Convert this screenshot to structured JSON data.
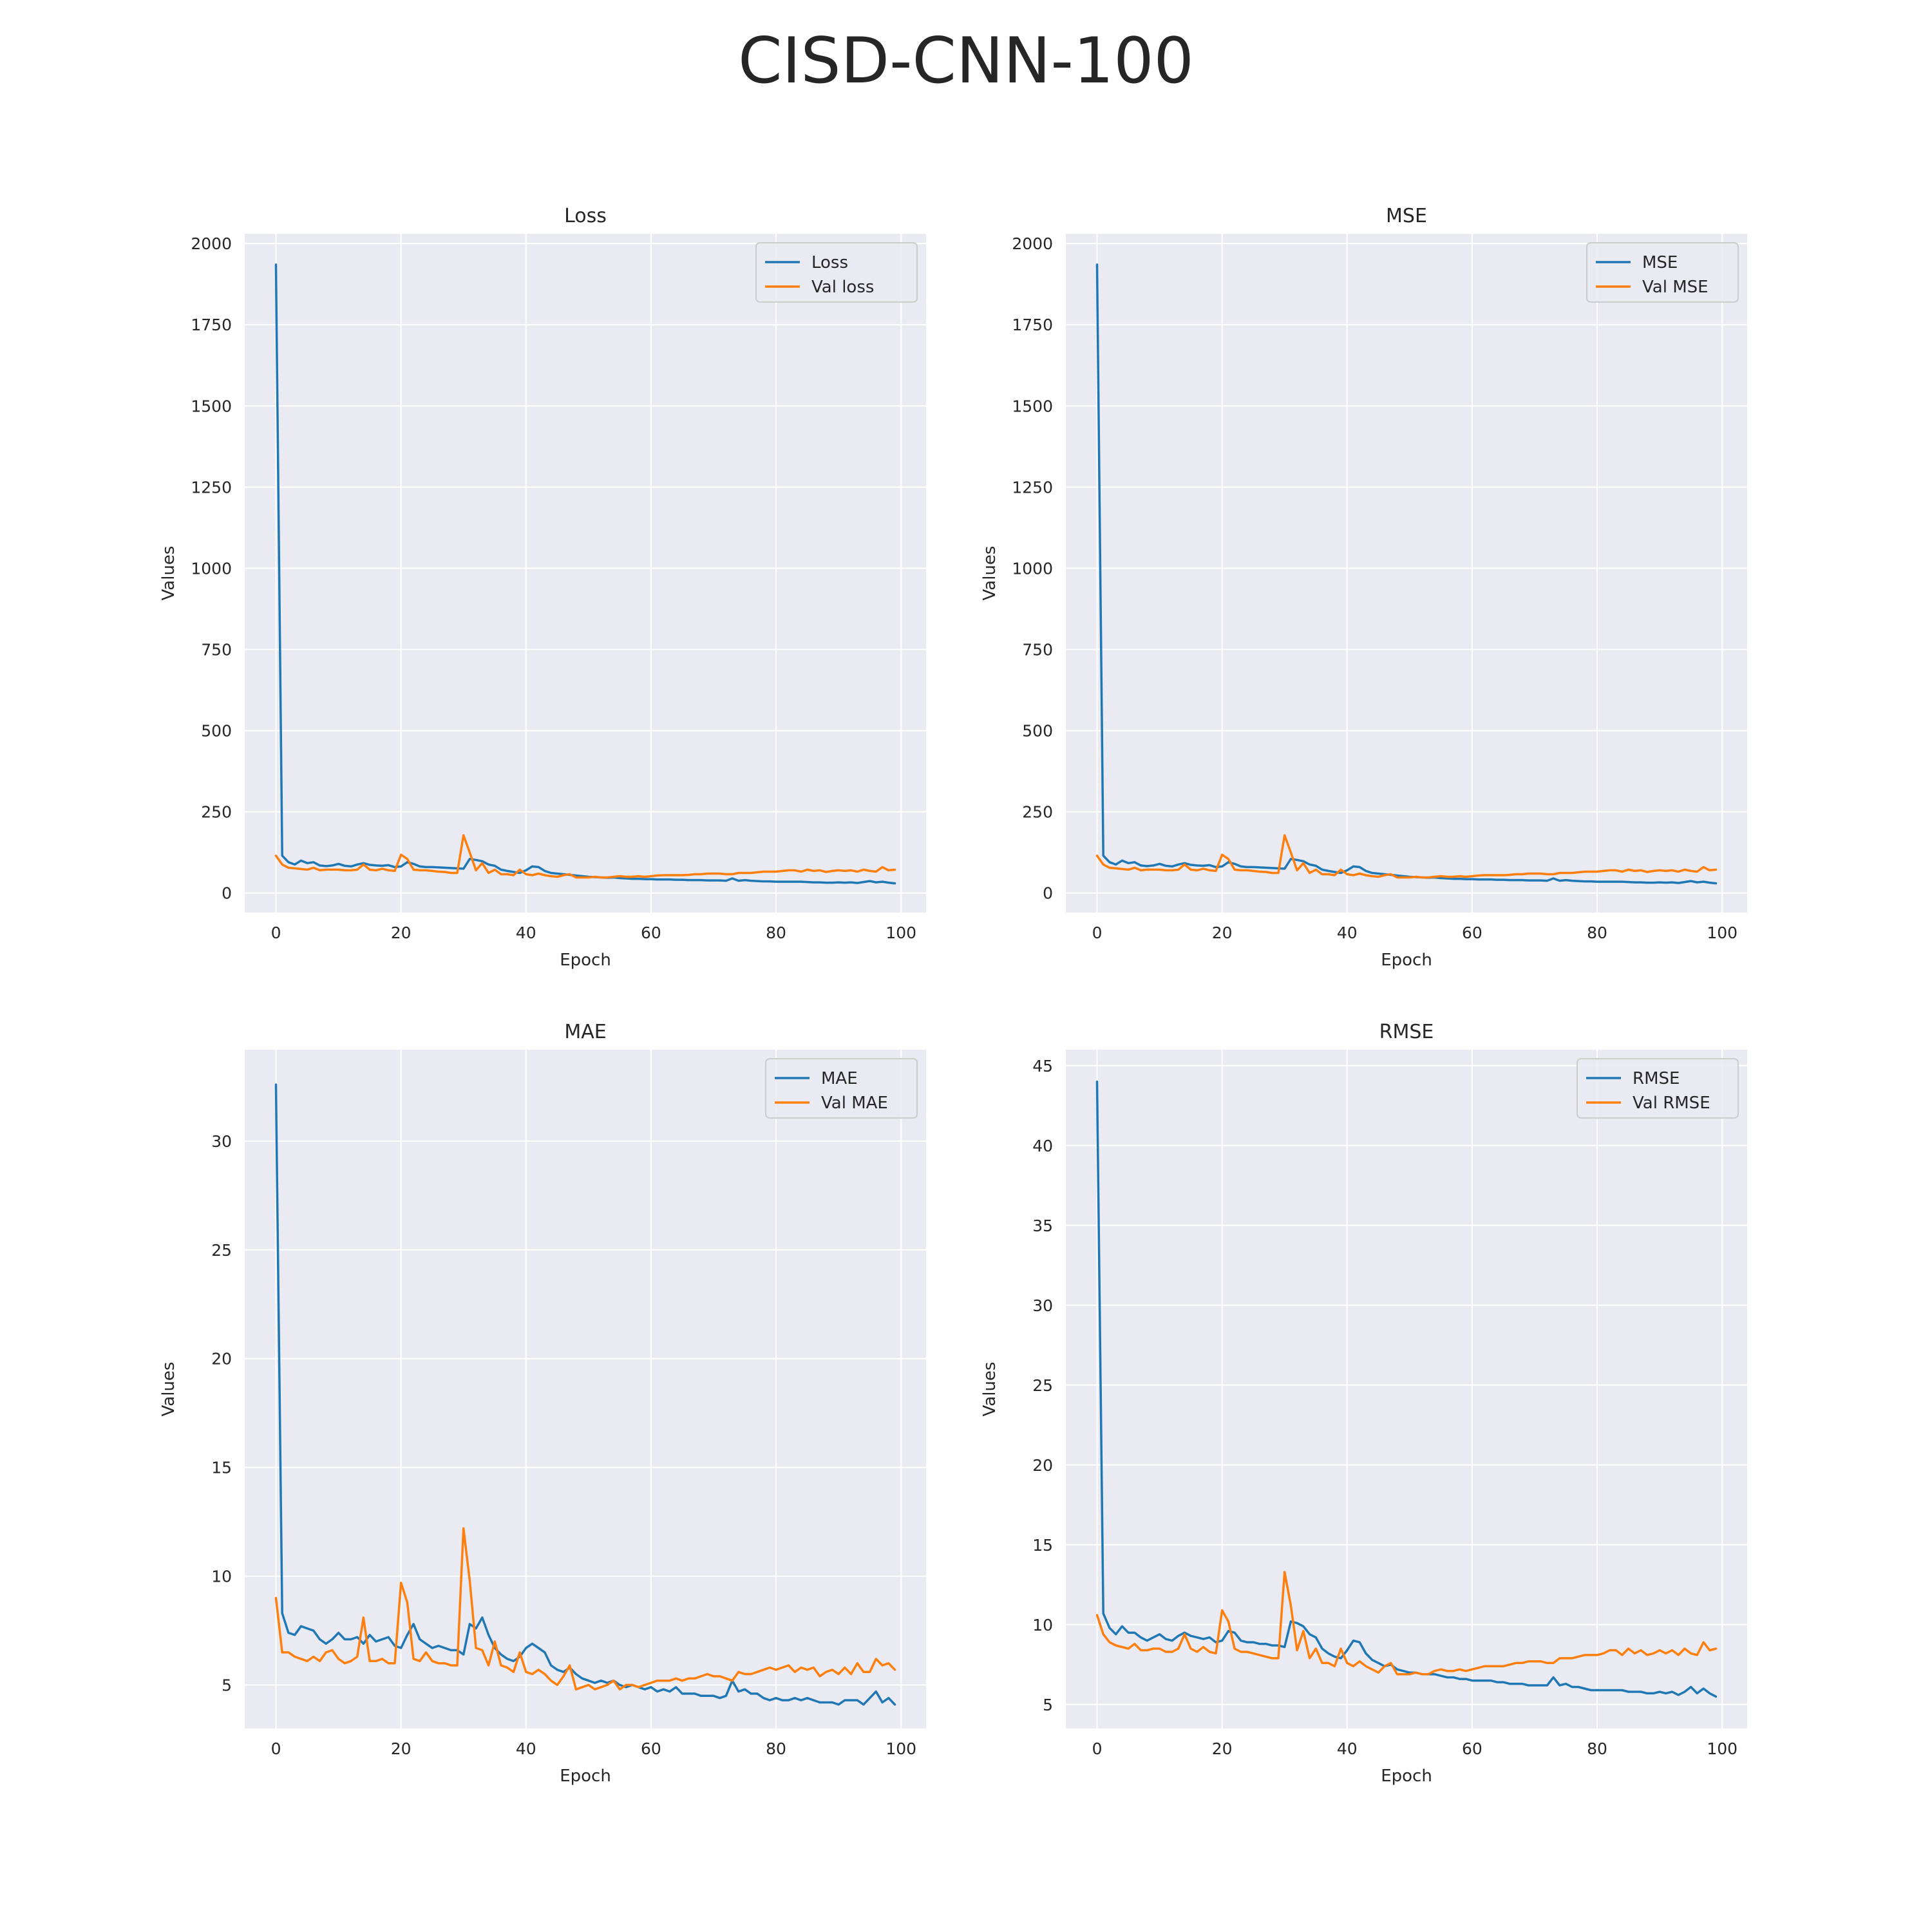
{
  "figure": {
    "title": "CISD-CNN-100"
  },
  "colors": {
    "train": "#1f77b4",
    "val": "#ff7f0e",
    "background": "#eaeaf2",
    "grid": "#ffffff"
  },
  "chart_data": [
    {
      "type": "line",
      "title": "Loss",
      "xlabel": "Epoch",
      "ylabel": "Values",
      "xlim": [
        -5,
        104
      ],
      "ylim": [
        -60,
        2030
      ],
      "xticks": [
        0,
        20,
        40,
        60,
        80,
        100
      ],
      "yticks": [
        0,
        250,
        500,
        750,
        1000,
        1250,
        1500,
        1750,
        2000
      ],
      "legend_position": "top-right",
      "series": [
        {
          "name": "Loss",
          "color": "#1f77b4",
          "values": [
            1935,
            115,
            95,
            88,
            100,
            92,
            95,
            85,
            83,
            85,
            90,
            84,
            82,
            88,
            92,
            87,
            85,
            84,
            86,
            80,
            82,
            95,
            90,
            82,
            80,
            80,
            79,
            78,
            77,
            76,
            75,
            105,
            102,
            98,
            88,
            84,
            72,
            68,
            65,
            62,
            70,
            82,
            80,
            68,
            62,
            60,
            58,
            56,
            54,
            52,
            50,
            49,
            48,
            47,
            48,
            46,
            45,
            44,
            44,
            43,
            43,
            42,
            42,
            42,
            41,
            41,
            40,
            40,
            40,
            39,
            39,
            39,
            38,
            45,
            38,
            40,
            38,
            37,
            36,
            36,
            35,
            35,
            35,
            35,
            35,
            34,
            33,
            33,
            32,
            32,
            33,
            32,
            33,
            31,
            34,
            37,
            33,
            35,
            32,
            30
          ]
        },
        {
          "name": "Val loss",
          "color": "#ff7f0e",
          "values": [
            115,
            88,
            78,
            76,
            74,
            72,
            78,
            70,
            72,
            72,
            72,
            70,
            70,
            72,
            88,
            72,
            70,
            75,
            70,
            68,
            118,
            105,
            72,
            70,
            70,
            68,
            66,
            65,
            62,
            62,
            178,
            125,
            70,
            92,
            62,
            72,
            58,
            58,
            55,
            72,
            58,
            55,
            60,
            55,
            52,
            50,
            55,
            58,
            48,
            48,
            48,
            50,
            48,
            48,
            50,
            52,
            50,
            50,
            52,
            50,
            52,
            54,
            55,
            55,
            55,
            55,
            56,
            58,
            58,
            60,
            60,
            60,
            58,
            58,
            62,
            62,
            62,
            64,
            66,
            66,
            66,
            68,
            70,
            70,
            66,
            72,
            68,
            70,
            65,
            68,
            70,
            68,
            70,
            66,
            72,
            68,
            66,
            80,
            70,
            72
          ]
        }
      ]
    },
    {
      "type": "line",
      "title": "MSE",
      "xlabel": "Epoch",
      "ylabel": "Values",
      "xlim": [
        -5,
        104
      ],
      "ylim": [
        -60,
        2030
      ],
      "xticks": [
        0,
        20,
        40,
        60,
        80,
        100
      ],
      "yticks": [
        0,
        250,
        500,
        750,
        1000,
        1250,
        1500,
        1750,
        2000
      ],
      "legend_position": "top-right",
      "series": [
        {
          "name": "MSE",
          "color": "#1f77b4",
          "values": [
            1935,
            115,
            95,
            88,
            100,
            92,
            95,
            85,
            83,
            85,
            90,
            84,
            82,
            88,
            92,
            87,
            85,
            84,
            86,
            80,
            82,
            95,
            90,
            82,
            80,
            80,
            79,
            78,
            77,
            76,
            75,
            105,
            102,
            98,
            88,
            84,
            72,
            68,
            65,
            62,
            70,
            82,
            80,
            68,
            62,
            60,
            58,
            56,
            54,
            52,
            50,
            49,
            48,
            47,
            48,
            46,
            45,
            44,
            44,
            43,
            43,
            42,
            42,
            42,
            41,
            41,
            40,
            40,
            40,
            39,
            39,
            39,
            38,
            45,
            38,
            40,
            38,
            37,
            36,
            36,
            35,
            35,
            35,
            35,
            35,
            34,
            33,
            33,
            32,
            32,
            33,
            32,
            33,
            31,
            34,
            37,
            33,
            35,
            32,
            30
          ]
        },
        {
          "name": "Val MSE",
          "color": "#ff7f0e",
          "values": [
            115,
            88,
            78,
            76,
            74,
            72,
            78,
            70,
            72,
            72,
            72,
            70,
            70,
            72,
            88,
            72,
            70,
            75,
            70,
            68,
            118,
            105,
            72,
            70,
            70,
            68,
            66,
            65,
            62,
            62,
            178,
            125,
            70,
            92,
            62,
            72,
            58,
            58,
            55,
            72,
            58,
            55,
            60,
            55,
            52,
            50,
            55,
            58,
            48,
            48,
            48,
            50,
            48,
            48,
            50,
            52,
            50,
            50,
            52,
            50,
            52,
            54,
            55,
            55,
            55,
            55,
            56,
            58,
            58,
            60,
            60,
            60,
            58,
            58,
            62,
            62,
            62,
            64,
            66,
            66,
            66,
            68,
            70,
            70,
            66,
            72,
            68,
            70,
            65,
            68,
            70,
            68,
            70,
            66,
            72,
            68,
            66,
            80,
            70,
            72
          ]
        }
      ]
    },
    {
      "type": "line",
      "title": "MAE",
      "xlabel": "Epoch",
      "ylabel": "Values",
      "xlim": [
        -5,
        104
      ],
      "ylim": [
        3.0,
        34.2
      ],
      "xticks": [
        0,
        20,
        40,
        60,
        80,
        100
      ],
      "yticks": [
        5,
        10,
        15,
        20,
        25,
        30
      ],
      "legend_position": "top-right",
      "series": [
        {
          "name": "MAE",
          "color": "#1f77b4",
          "values": [
            32.6,
            8.3,
            7.4,
            7.3,
            7.7,
            7.6,
            7.5,
            7.1,
            6.9,
            7.1,
            7.4,
            7.1,
            7.1,
            7.2,
            6.9,
            7.3,
            7.0,
            7.1,
            7.2,
            6.8,
            6.7,
            7.3,
            7.8,
            7.1,
            6.9,
            6.7,
            6.8,
            6.7,
            6.6,
            6.6,
            6.4,
            7.8,
            7.6,
            8.1,
            7.3,
            6.7,
            6.4,
            6.2,
            6.1,
            6.3,
            6.7,
            6.9,
            6.7,
            6.5,
            5.9,
            5.7,
            5.6,
            5.8,
            5.5,
            5.3,
            5.2,
            5.1,
            5.2,
            5.1,
            5.2,
            5.0,
            4.9,
            5.0,
            4.9,
            4.8,
            4.9,
            4.7,
            4.8,
            4.7,
            4.9,
            4.6,
            4.6,
            4.6,
            4.5,
            4.5,
            4.5,
            4.4,
            4.5,
            5.2,
            4.7,
            4.8,
            4.6,
            4.6,
            4.4,
            4.3,
            4.4,
            4.3,
            4.3,
            4.4,
            4.3,
            4.4,
            4.3,
            4.2,
            4.2,
            4.2,
            4.1,
            4.3,
            4.3,
            4.3,
            4.1,
            4.4,
            4.7,
            4.2,
            4.4,
            4.1
          ]
        },
        {
          "name": "Val MAE",
          "color": "#ff7f0e",
          "values": [
            9.0,
            6.5,
            6.5,
            6.3,
            6.2,
            6.1,
            6.3,
            6.1,
            6.5,
            6.6,
            6.2,
            6.0,
            6.1,
            6.3,
            8.1,
            6.1,
            6.1,
            6.2,
            6.0,
            6.0,
            9.7,
            8.8,
            6.2,
            6.1,
            6.5,
            6.1,
            6.0,
            6.0,
            5.9,
            5.9,
            12.2,
            9.8,
            6.7,
            6.6,
            5.9,
            7.0,
            5.9,
            5.8,
            5.6,
            6.5,
            5.6,
            5.5,
            5.7,
            5.5,
            5.2,
            5.0,
            5.4,
            5.9,
            4.8,
            4.9,
            5.0,
            4.8,
            4.9,
            5.0,
            5.2,
            4.8,
            5.0,
            5.0,
            4.9,
            5.0,
            5.1,
            5.2,
            5.2,
            5.2,
            5.3,
            5.2,
            5.3,
            5.3,
            5.4,
            5.5,
            5.4,
            5.4,
            5.3,
            5.2,
            5.6,
            5.5,
            5.5,
            5.6,
            5.7,
            5.8,
            5.7,
            5.8,
            5.9,
            5.6,
            5.8,
            5.7,
            5.8,
            5.4,
            5.6,
            5.7,
            5.5,
            5.8,
            5.5,
            6.0,
            5.6,
            5.6,
            6.2,
            5.9,
            6.0,
            5.7
          ]
        }
      ]
    },
    {
      "type": "line",
      "title": "RMSE",
      "xlabel": "Epoch",
      "ylabel": "Values",
      "xlim": [
        -5,
        104
      ],
      "ylim": [
        3.5,
        46.0
      ],
      "xticks": [
        0,
        20,
        40,
        60,
        80,
        100
      ],
      "yticks": [
        5,
        10,
        15,
        20,
        25,
        30,
        35,
        40,
        45
      ],
      "legend_position": "top-right",
      "series": [
        {
          "name": "RMSE",
          "color": "#1f77b4",
          "values": [
            44.0,
            10.7,
            9.8,
            9.4,
            9.9,
            9.5,
            9.5,
            9.2,
            9.0,
            9.2,
            9.4,
            9.1,
            9.0,
            9.3,
            9.5,
            9.3,
            9.2,
            9.1,
            9.2,
            8.9,
            9.0,
            9.6,
            9.5,
            9.0,
            8.9,
            8.9,
            8.8,
            8.8,
            8.7,
            8.7,
            8.6,
            10.2,
            10.1,
            9.9,
            9.4,
            9.2,
            8.5,
            8.2,
            8.0,
            7.9,
            8.4,
            9.0,
            8.9,
            8.2,
            7.8,
            7.6,
            7.4,
            7.5,
            7.2,
            7.1,
            7.0,
            7.0,
            6.9,
            6.9,
            6.9,
            6.8,
            6.7,
            6.7,
            6.6,
            6.6,
            6.5,
            6.5,
            6.5,
            6.5,
            6.4,
            6.4,
            6.3,
            6.3,
            6.3,
            6.2,
            6.2,
            6.2,
            6.2,
            6.7,
            6.2,
            6.3,
            6.1,
            6.1,
            6.0,
            5.9,
            5.9,
            5.9,
            5.9,
            5.9,
            5.9,
            5.8,
            5.8,
            5.8,
            5.7,
            5.7,
            5.8,
            5.7,
            5.8,
            5.6,
            5.8,
            6.1,
            5.7,
            6.0,
            5.7,
            5.5
          ]
        },
        {
          "name": "Val RMSE",
          "color": "#ff7f0e",
          "values": [
            10.6,
            9.4,
            8.9,
            8.7,
            8.6,
            8.5,
            8.8,
            8.4,
            8.4,
            8.5,
            8.5,
            8.3,
            8.3,
            8.5,
            9.4,
            8.5,
            8.3,
            8.6,
            8.3,
            8.2,
            10.9,
            10.2,
            8.5,
            8.3,
            8.3,
            8.2,
            8.1,
            8.0,
            7.9,
            7.9,
            13.3,
            11.2,
            8.4,
            9.6,
            7.9,
            8.5,
            7.6,
            7.6,
            7.4,
            8.5,
            7.6,
            7.4,
            7.7,
            7.4,
            7.2,
            7.0,
            7.4,
            7.6,
            6.9,
            6.9,
            6.9,
            7.0,
            6.9,
            6.9,
            7.1,
            7.2,
            7.1,
            7.1,
            7.2,
            7.1,
            7.2,
            7.3,
            7.4,
            7.4,
            7.4,
            7.4,
            7.5,
            7.6,
            7.6,
            7.7,
            7.7,
            7.7,
            7.6,
            7.6,
            7.9,
            7.9,
            7.9,
            8.0,
            8.1,
            8.1,
            8.1,
            8.2,
            8.4,
            8.4,
            8.1,
            8.5,
            8.2,
            8.4,
            8.1,
            8.2,
            8.4,
            8.2,
            8.4,
            8.1,
            8.5,
            8.2,
            8.1,
            8.9,
            8.4,
            8.5
          ]
        }
      ]
    }
  ]
}
